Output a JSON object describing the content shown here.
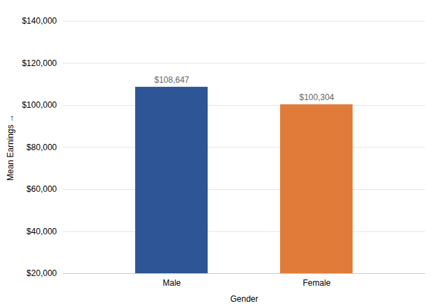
{
  "chart_data": {
    "type": "bar",
    "categories": [
      "Male",
      "Female"
    ],
    "values": [
      108647,
      100304
    ],
    "value_labels": [
      "$108,647",
      "$100,304"
    ],
    "data_labels": true,
    "colors": [
      "#2e5596",
      "#e07b39"
    ],
    "xlabel": "Gender",
    "ylabel": "Mean Earnings",
    "ylim": [
      20000,
      140000
    ],
    "yticks": [
      {
        "value": 20000,
        "label": "$20,000"
      },
      {
        "value": 40000,
        "label": "$40,000"
      },
      {
        "value": 60000,
        "label": "$60,000"
      },
      {
        "value": 80000,
        "label": "$80,000"
      },
      {
        "value": 100000,
        "label": "$100,000"
      },
      {
        "value": 120000,
        "label": "$120,000"
      },
      {
        "value": 140000,
        "label": "$140,000"
      }
    ],
    "grid": true
  }
}
